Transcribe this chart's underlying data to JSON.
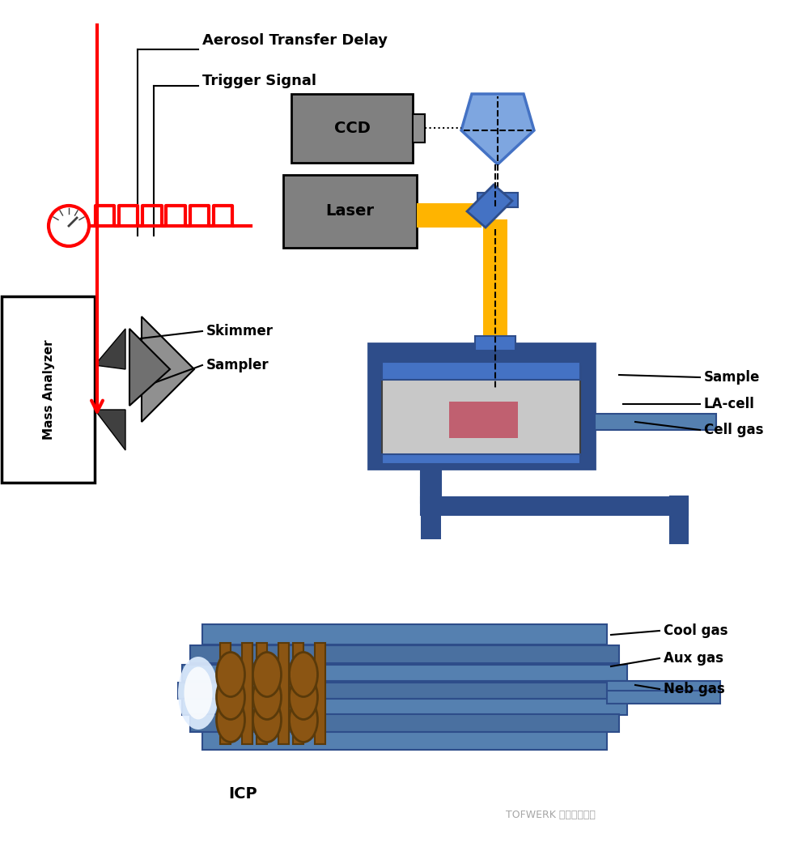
{
  "bg_color": "#ffffff",
  "title": "",
  "colors": {
    "gray_box": "#808080",
    "gray_box_dark": "#606060",
    "blue_optic": "#4472C4",
    "blue_light": "#7EA6E0",
    "blue_dark": "#2E4D8A",
    "yellow_beam": "#FFB400",
    "red": "#FF0000",
    "red_dark": "#CC0000",
    "pink_sample": "#C06070",
    "brown_coil": "#8B5513",
    "gray_cell": "#A0A0A0",
    "gray_light": "#C8C8C8",
    "gray_medium": "#909090",
    "blue_icp": "#5580B0",
    "blue_icp_dark": "#3A6090",
    "blue_icp_mid": "#4A70A0",
    "plasma_white": "#E0EEFF",
    "dark_gray": "#404040",
    "medium_gray": "#707070"
  },
  "labels": {
    "aerosol": "Aerosol Transfer Delay",
    "trigger": "Trigger Signal",
    "ccd": "CCD",
    "laser": "Laser",
    "sample": "Sample",
    "la_cell": "LA-cell",
    "cell_gas": "Cell gas",
    "mass_analyzer": "Mass Analyzer",
    "skimmer": "Skimmer",
    "sampler": "Sampler",
    "icp": "ICP",
    "cool_gas": "Cool gas",
    "aux_gas": "Aux gas",
    "neb_gas": "Neb gas",
    "watermark": "TOFWERK 南京拓服工坊"
  }
}
